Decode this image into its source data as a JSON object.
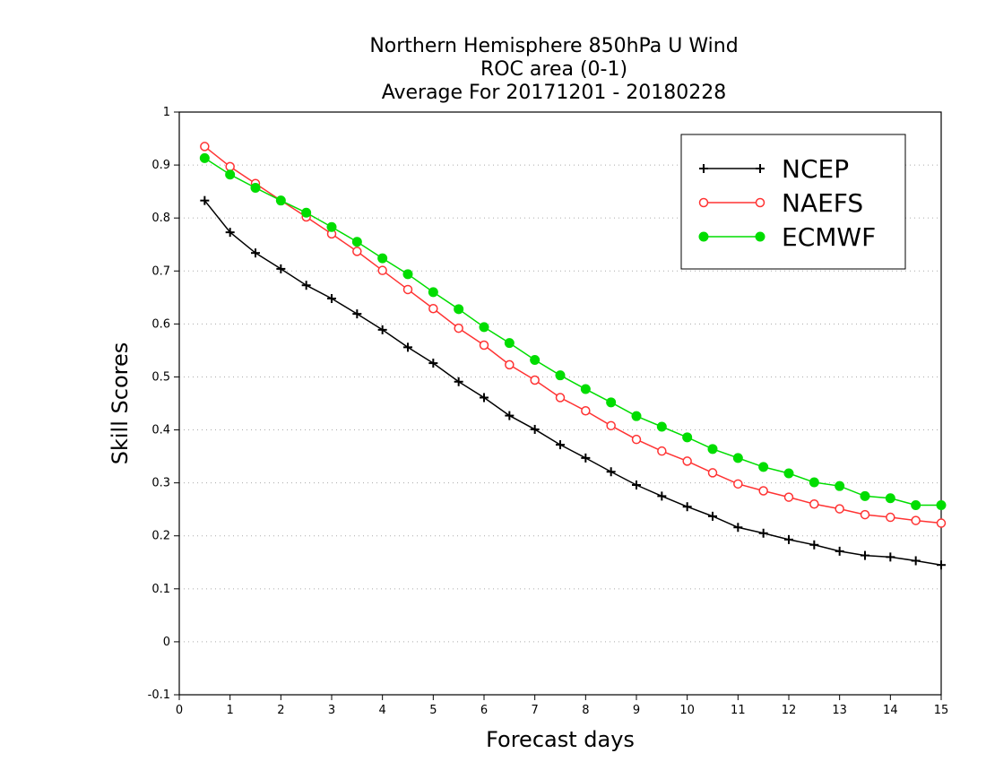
{
  "chart_data": {
    "type": "line",
    "title_lines": [
      "Northern Hemisphere 850hPa U Wind",
      "ROC area (0-1)",
      "Average For 20171201 - 20180228"
    ],
    "xlabel": "Forecast days",
    "ylabel": "Skill Scores",
    "xlim": [
      0,
      15
    ],
    "ylim": [
      -0.1,
      1
    ],
    "x_ticks": [
      "0",
      "1",
      "2",
      "3",
      "4",
      "5",
      "6",
      "7",
      "8",
      "9",
      "10",
      "11",
      "12",
      "13",
      "14",
      "15"
    ],
    "y_ticks": [
      "-0.1",
      "0",
      "0.1",
      "0.2",
      "0.3",
      "0.4",
      "0.5",
      "0.6",
      "0.7",
      "0.8",
      "0.9",
      "1"
    ],
    "grid": "dotted horizontal",
    "legend_position": "top-right",
    "x": [
      0.5,
      1,
      1.5,
      2,
      2.5,
      3,
      3.5,
      4,
      4.5,
      5,
      5.5,
      6,
      6.5,
      7,
      7.5,
      8,
      8.5,
      9,
      9.5,
      10,
      10.5,
      11,
      11.5,
      12,
      12.5,
      13,
      13.5,
      14,
      14.5,
      15
    ],
    "series": [
      {
        "name": "NCEP",
        "color": "#000000",
        "marker": "plus",
        "values": [
          0.833,
          0.773,
          0.734,
          0.704,
          0.673,
          0.648,
          0.619,
          0.589,
          0.556,
          0.526,
          0.491,
          0.461,
          0.427,
          0.401,
          0.372,
          0.347,
          0.321,
          0.296,
          0.275,
          0.255,
          0.237,
          0.216,
          0.205,
          0.193,
          0.183,
          0.171,
          0.163,
          0.16,
          0.153,
          0.145
        ]
      },
      {
        "name": "NAEFS",
        "color": "#ff3333",
        "marker": "open-circle",
        "values": [
          0.935,
          0.897,
          0.865,
          0.833,
          0.802,
          0.77,
          0.737,
          0.701,
          0.665,
          0.629,
          0.592,
          0.56,
          0.523,
          0.494,
          0.461,
          0.436,
          0.408,
          0.382,
          0.36,
          0.341,
          0.319,
          0.298,
          0.285,
          0.273,
          0.26,
          0.251,
          0.24,
          0.235,
          0.229,
          0.224
        ]
      },
      {
        "name": "ECMWF",
        "color": "#00dd00",
        "marker": "filled-circle",
        "values": [
          0.913,
          0.882,
          0.857,
          0.833,
          0.81,
          0.783,
          0.755,
          0.724,
          0.694,
          0.66,
          0.628,
          0.594,
          0.564,
          0.532,
          0.503,
          0.477,
          0.452,
          0.426,
          0.406,
          0.386,
          0.364,
          0.347,
          0.33,
          0.318,
          0.301,
          0.294,
          0.275,
          0.271,
          0.258,
          0.258
        ]
      }
    ]
  }
}
